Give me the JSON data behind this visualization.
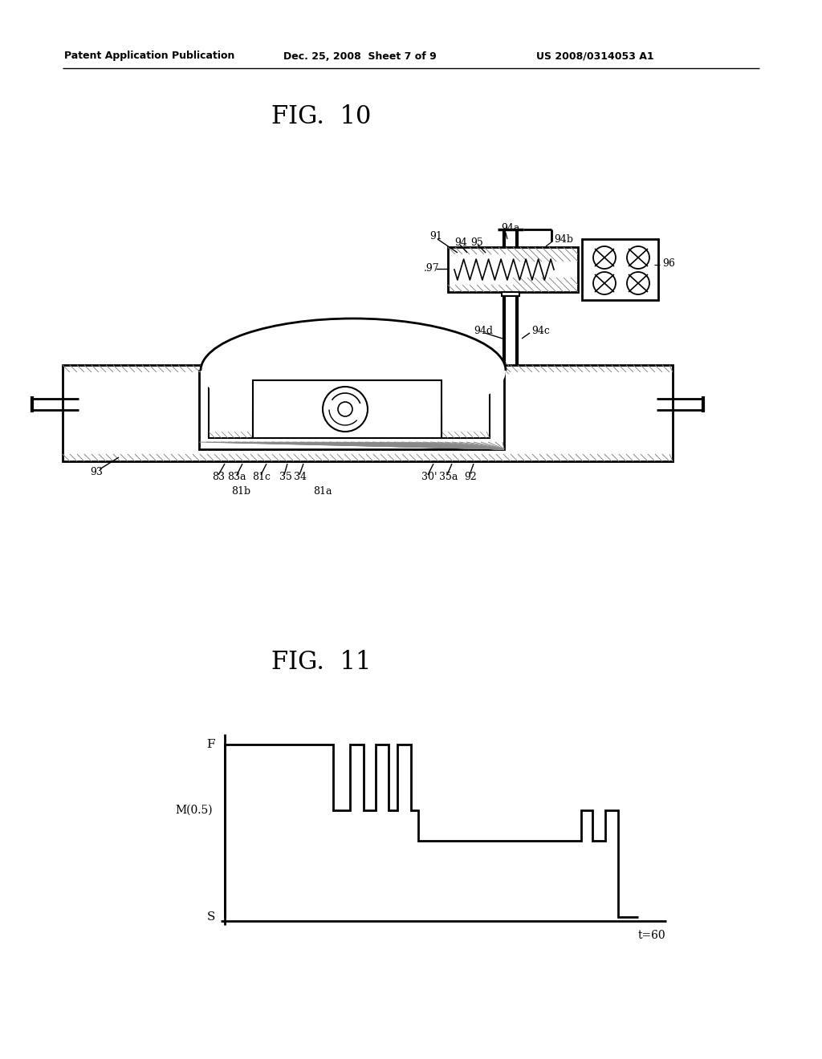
{
  "background_color": "#ffffff",
  "page_width": 10.24,
  "page_height": 13.2,
  "header_left": "Patent Application Publication",
  "header_center": "Dec. 25, 2008  Sheet 7 of 9",
  "header_right": "US 2008/0314053 A1",
  "fig10_title": "FIG.  10",
  "fig11_title": "FIG.  11",
  "chart_ylabel_F": "F",
  "chart_ylabel_M": "M(0.5)",
  "chart_ylabel_S": "S",
  "chart_xlabel": "t=60",
  "line_color": "#000000",
  "hatch_color": "#888888",
  "label_fontsize": 9,
  "title_fontsize": 22,
  "header_fontsize": 9
}
